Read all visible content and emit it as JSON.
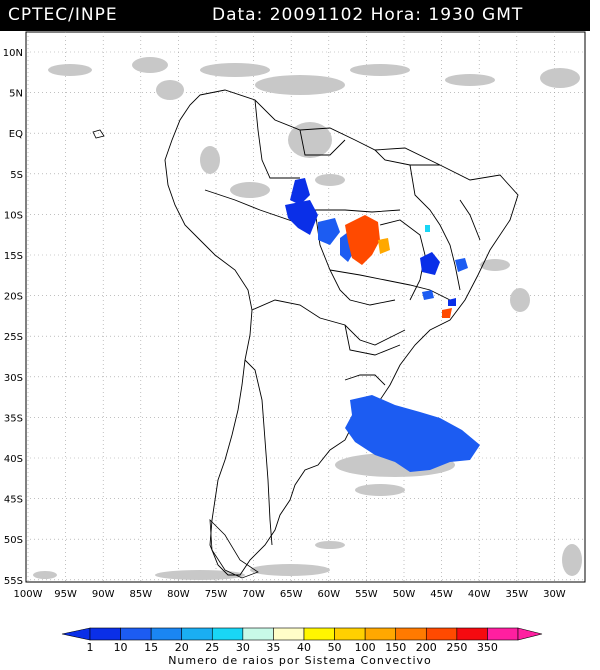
{
  "header": {
    "source": "CPTEC/INPE",
    "datetime": "Data: 20091102 Hora: 1930 GMT"
  },
  "map": {
    "lat_labels": [
      "10N",
      "5N",
      "EQ",
      "5S",
      "10S",
      "15S",
      "20S",
      "25S",
      "30S",
      "35S",
      "40S",
      "45S",
      "50S",
      "55S"
    ],
    "lon_labels": [
      "100W",
      "95W",
      "90W",
      "85W",
      "80W",
      "75W",
      "70W",
      "65W",
      "60W",
      "55W",
      "50W",
      "45W",
      "40W",
      "35W",
      "30W"
    ]
  },
  "legend": {
    "values": [
      "1",
      "10",
      "15",
      "20",
      "25",
      "30",
      "35",
      "40",
      "50",
      "100",
      "150",
      "200",
      "250",
      "350"
    ],
    "colors": [
      "#0a2fe8",
      "#1c5cf2",
      "#1a86f3",
      "#1aaef2",
      "#19d6f5",
      "#c8fae8",
      "#fffec8",
      "#fff600",
      "#ffd000",
      "#ffa800",
      "#ff7a00",
      "#ff4a00",
      "#f50a10",
      "#ff1fa0"
    ],
    "caption": "Numero de raios por Sistema Convectivo"
  }
}
